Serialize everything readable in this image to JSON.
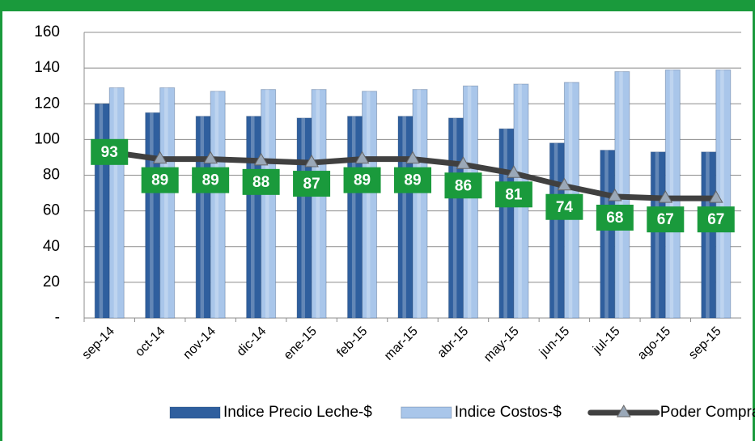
{
  "chart_data": {
    "type": "bar",
    "categories": [
      "sep-14",
      "oct-14",
      "nov-14",
      "dic-14",
      "ene-15",
      "feb-15",
      "mar-15",
      "abr-15",
      "may-15",
      "jun-15",
      "jul-15",
      "ago-15",
      "sep-15"
    ],
    "series": [
      {
        "name": "Indice Precio Leche-$",
        "color": "#2f5f9e",
        "type": "bar",
        "values": [
          120,
          115,
          113,
          113,
          112,
          113,
          113,
          112,
          106,
          98,
          94,
          93,
          93
        ]
      },
      {
        "name": "Indice Costos-$",
        "color": "#a9c6ea",
        "type": "bar",
        "values": [
          129,
          129,
          127,
          128,
          128,
          127,
          128,
          130,
          131,
          132,
          138,
          139,
          139
        ]
      },
      {
        "name": "Poder Compra-$",
        "color": "#404040",
        "type": "line",
        "values": [
          93,
          89,
          89,
          88,
          87,
          89,
          89,
          86,
          81,
          74,
          68,
          67,
          67
        ]
      }
    ],
    "ylim": [
      0,
      160
    ],
    "yticks": [
      {
        "value": 0,
        "label": "-"
      },
      20,
      40,
      60,
      80,
      100,
      120,
      140,
      160
    ],
    "grid": true,
    "legend": "bottom",
    "label_color": "#1a9a3c"
  }
}
